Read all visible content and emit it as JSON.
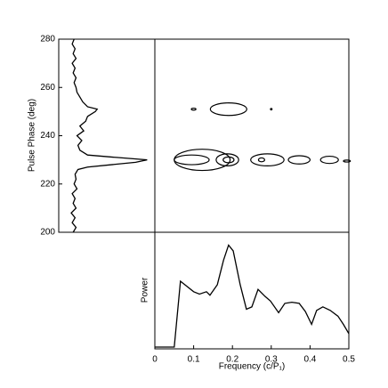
{
  "chart_data": [
    {
      "type": "profile",
      "ylabel": "Pulse Phase (deg)",
      "color": "#000000",
      "y": [
        200,
        202,
        204,
        206,
        208,
        210,
        212,
        214,
        216,
        218,
        220,
        222,
        224,
        226,
        227,
        228,
        229,
        230,
        231,
        232,
        234,
        236,
        238,
        240,
        242,
        244,
        246,
        248,
        250,
        251,
        252,
        254,
        256,
        258,
        260,
        262,
        264,
        266,
        268,
        270,
        272,
        274,
        276,
        278,
        280
      ],
      "values": [
        15,
        18,
        14,
        17,
        13,
        18,
        15,
        17,
        14,
        19,
        16,
        18,
        17,
        20,
        30,
        55,
        80,
        92,
        60,
        30,
        22,
        20,
        24,
        19,
        26,
        22,
        28,
        30,
        38,
        40,
        30,
        25,
        22,
        19,
        18,
        16,
        18,
        15,
        17,
        14,
        18,
        15,
        17,
        14,
        16
      ],
      "xlim": [
        0,
        100
      ],
      "ylim": [
        200,
        280
      ],
      "yticks": [
        200,
        220,
        240,
        260,
        280
      ]
    },
    {
      "type": "contour",
      "color": "#000000",
      "xlim": [
        0,
        0.5
      ],
      "ylim": [
        200,
        280
      ],
      "contours": [
        {
          "x": 0.1,
          "y": 251,
          "rx": 0.006,
          "ry": 0.4
        },
        {
          "x": 0.19,
          "y": 251,
          "rx": 0.047,
          "ry": 2.6
        },
        {
          "x": 0.3,
          "y": 251,
          "rx": 0.002,
          "ry": 0.3
        },
        {
          "x": 0.122,
          "y": 230,
          "rx": 0.072,
          "ry": 4.4
        },
        {
          "x": 0.095,
          "y": 230,
          "rx": 0.045,
          "ry": 2
        },
        {
          "x": 0.187,
          "y": 230,
          "rx": 0.029,
          "ry": 2.5
        },
        {
          "x": 0.19,
          "y": 230,
          "rx": 0.014,
          "ry": 1.2
        },
        {
          "x": 0.29,
          "y": 230,
          "rx": 0.043,
          "ry": 2.5
        },
        {
          "x": 0.275,
          "y": 230,
          "rx": 0.008,
          "ry": 0.8
        },
        {
          "x": 0.372,
          "y": 230,
          "rx": 0.028,
          "ry": 1.7
        },
        {
          "x": 0.45,
          "y": 230,
          "rx": 0.023,
          "ry": 1.5
        },
        {
          "x": 0.495,
          "y": 229.5,
          "rx": 0.009,
          "ry": 0.4
        }
      ]
    },
    {
      "type": "line",
      "xlabel": "Frequency (c/P₁)",
      "ylabel": "Power",
      "color": "#000000",
      "x": [
        0,
        0.05,
        0.066,
        0.1,
        0.115,
        0.133,
        0.142,
        0.161,
        0.177,
        0.19,
        0.202,
        0.22,
        0.236,
        0.25,
        0.266,
        0.284,
        0.298,
        0.319,
        0.335,
        0.353,
        0.372,
        0.388,
        0.404,
        0.417,
        0.433,
        0.452,
        0.472,
        0.486,
        0.5
      ],
      "values": [
        1.5,
        1.5,
        58,
        49,
        47,
        49,
        46,
        55,
        76,
        89,
        84,
        55,
        34,
        36,
        51,
        45,
        41,
        31,
        39,
        40,
        39,
        32,
        21,
        33,
        36,
        33,
        28,
        21,
        13
      ],
      "xlim": [
        0,
        0.5
      ],
      "ylim": [
        0,
        100
      ],
      "xticks": [
        0,
        0.1,
        0.2,
        0.3,
        0.4,
        0.5
      ]
    }
  ]
}
